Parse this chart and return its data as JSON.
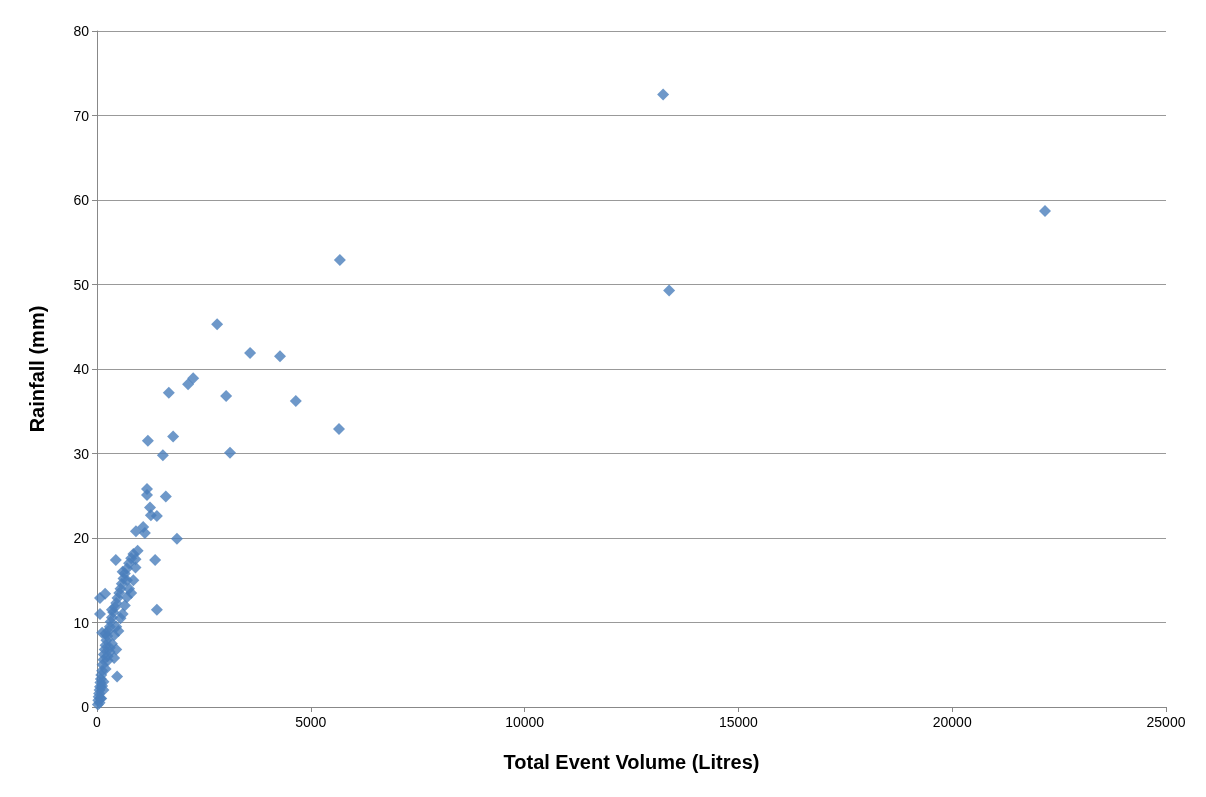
{
  "chart_data": {
    "type": "scatter",
    "xlabel": "Total Event Volume (Litres)",
    "ylabel": "Rainfall (mm)",
    "x": [
      13240,
      22170,
      13380,
      5680,
      2810,
      3580,
      4280,
      2130,
      2250,
      1680,
      3020,
      4650,
      5660,
      1190,
      1780,
      3110,
      1540,
      1170,
      1170,
      1610,
      1240,
      1260,
      1400,
      1870,
      1080,
      1120,
      910,
      1360,
      1400,
      440,
      70,
      70,
      190,
      470,
      20,
      30,
      40,
      50,
      60,
      70,
      80,
      90,
      100,
      120,
      130,
      150,
      160,
      180,
      200,
      220,
      240,
      260,
      300,
      320,
      350,
      380,
      420,
      450,
      480,
      520,
      550,
      580,
      620,
      650,
      700,
      750,
      800,
      850,
      950,
      100,
      60,
      150,
      200,
      250,
      300,
      350,
      400,
      450,
      250,
      300,
      400,
      450,
      500,
      550,
      600,
      650,
      700,
      750,
      800,
      850,
      900,
      900,
      350,
      120,
      200,
      600,
      700,
      150,
      80,
      120
    ],
    "values": [
      72.5,
      58.7,
      49.3,
      52.9,
      45.3,
      41.9,
      41.5,
      38.2,
      38.9,
      37.2,
      36.8,
      36.2,
      32.9,
      31.5,
      32.0,
      30.1,
      29.8,
      25.8,
      25.1,
      24.9,
      23.6,
      22.7,
      22.6,
      19.9,
      21.3,
      20.6,
      20.8,
      17.4,
      11.5,
      17.4,
      12.9,
      11.0,
      13.4,
      3.6,
      0.3,
      0.8,
      1.2,
      1.6,
      2.0,
      2.4,
      2.9,
      3.3,
      3.8,
      4.3,
      5.0,
      5.6,
      6.2,
      6.8,
      7.3,
      7.9,
      8.4,
      9.0,
      9.5,
      10.1,
      10.6,
      11.2,
      11.8,
      12.3,
      12.9,
      13.5,
      14.0,
      14.6,
      15.2,
      15.8,
      16.4,
      17.0,
      17.6,
      18.1,
      18.5,
      1.0,
      0.5,
      3.0,
      4.5,
      5.5,
      6.5,
      7.5,
      8.5,
      9.5,
      6.0,
      7.0,
      5.8,
      6.8,
      9.0,
      10.5,
      11.0,
      12.0,
      13.0,
      14.0,
      13.5,
      15.0,
      16.5,
      17.5,
      11.5,
      8.8,
      8.7,
      16.0,
      15.0,
      2.0,
      1.0,
      2.5
    ],
    "color": "#4a7ebb",
    "marker": "diamond",
    "xlim": [
      0,
      25000
    ],
    "xticks": [
      0,
      5000,
      10000,
      15000,
      20000,
      25000
    ],
    "ylim": [
      0,
      80
    ],
    "yticks": [
      0,
      10,
      20,
      30,
      40,
      50,
      60,
      70,
      80
    ],
    "grid": "y"
  }
}
